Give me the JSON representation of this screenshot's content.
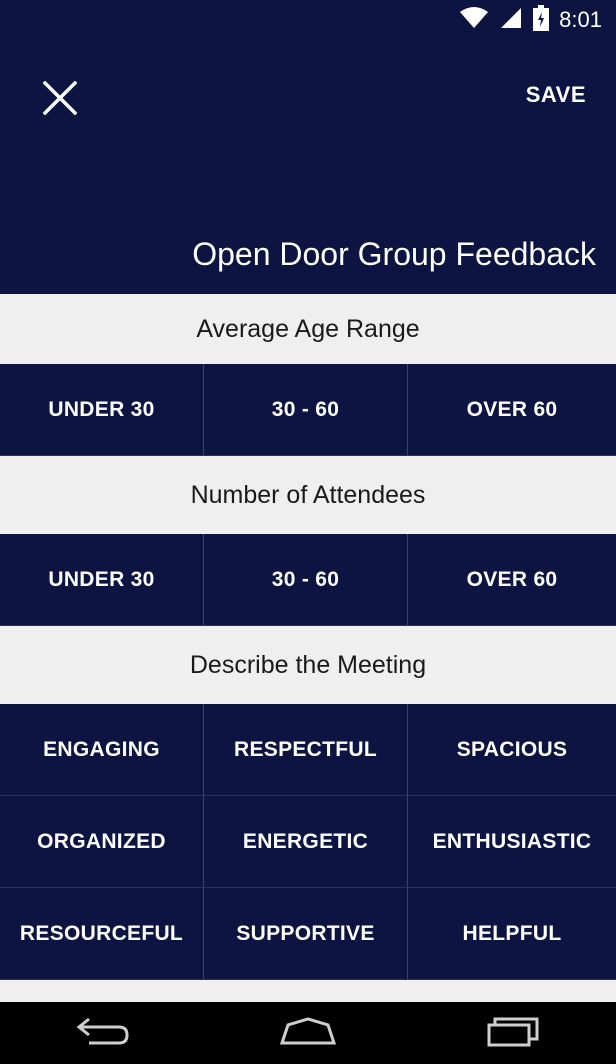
{
  "status": {
    "time": "8:01"
  },
  "header": {
    "save_label": "SAVE",
    "title": "Open Door Group Feedback"
  },
  "sections": [
    {
      "title": "Average Age Range",
      "options": [
        "UNDER 30",
        "30 - 60",
        "OVER 60"
      ]
    },
    {
      "title": "Number of Attendees",
      "options": [
        "UNDER 30",
        "30 - 60",
        "OVER 60"
      ]
    },
    {
      "title": "Describe the Meeting",
      "options": [
        "ENGAGING",
        "RESPECTFUL",
        "SPACIOUS",
        "ORGANIZED",
        "ENERGETIC",
        "ENTHUSIASTIC",
        "RESOURCEFUL",
        "SUPPORTIVE",
        "HELPFUL"
      ]
    }
  ],
  "colors": {
    "primary": "#0e1442",
    "section_bg": "#efefef",
    "nav_bg": "#000000"
  },
  "icons": {
    "close": "close-icon",
    "back": "back-icon",
    "home": "home-icon",
    "recents": "recents-icon"
  }
}
